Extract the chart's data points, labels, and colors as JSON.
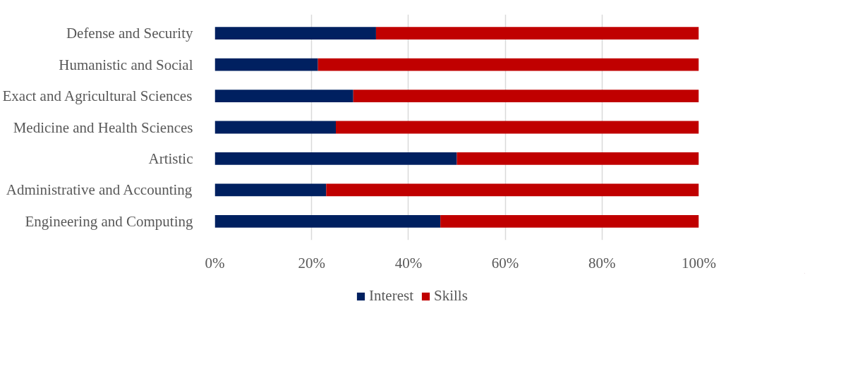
{
  "chart_data": {
    "type": "bar",
    "orientation": "horizontal",
    "stacked": true,
    "categories": [
      "Defense and Security",
      "Humanistic and Social",
      "Exact and Agricultural Sciences",
      "Medicine and Health Sciences",
      "Artistic",
      "Administrative and Accounting",
      "Engineering and Computing"
    ],
    "series": [
      {
        "name": "Interest",
        "color": "#002060",
        "values": [
          33.3,
          21.3,
          28.6,
          25,
          50,
          23,
          46.6
        ]
      },
      {
        "name": "Skills",
        "color": "#c00000",
        "values": [
          66.7,
          78.7,
          71.4,
          75,
          50,
          77,
          53.4
        ]
      }
    ],
    "xlim": [
      0,
      100
    ],
    "xticks": [
      {
        "value": 0,
        "label": "0%"
      },
      {
        "value": 20,
        "label": "20%"
      },
      {
        "value": 40,
        "label": "40%"
      },
      {
        "value": 60,
        "label": "60%"
      },
      {
        "value": 80,
        "label": "80%"
      },
      {
        "value": 100,
        "label": "100%"
      }
    ],
    "grid": "x",
    "legend": "bottom"
  }
}
